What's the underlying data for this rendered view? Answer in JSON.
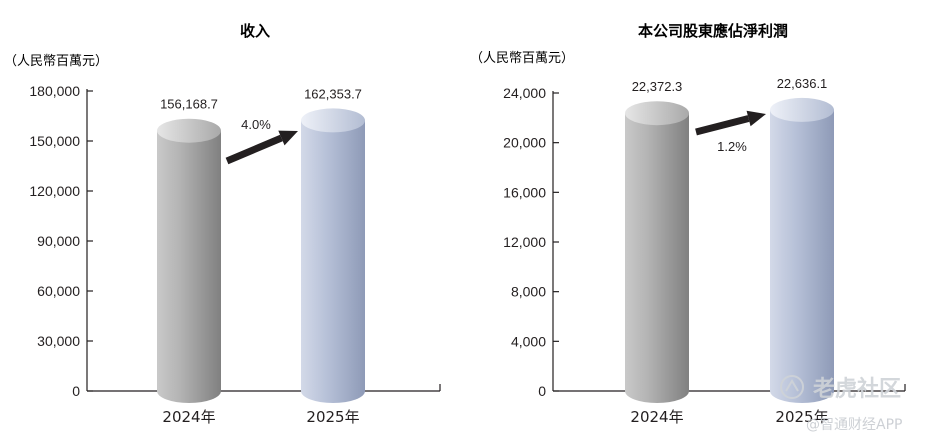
{
  "chart_data": [
    {
      "type": "bar",
      "title": "收入",
      "unit_label": "（人民幣百萬元）",
      "categories": [
        "2024年",
        "2025年"
      ],
      "values": [
        156168.7,
        162353.7
      ],
      "value_labels": [
        "156,168.7",
        "162,353.7"
      ],
      "growth_label": "4.0%",
      "ylim": [
        0,
        180000
      ],
      "yticks": [
        0,
        30000,
        60000,
        90000,
        120000,
        150000,
        180000
      ],
      "ytick_labels": [
        "0",
        "30,000",
        "60,000",
        "90,000",
        "120,000",
        "150,000",
        "180,000"
      ],
      "bar_colors": [
        "#8c8c8c",
        "#aab4ca"
      ]
    },
    {
      "type": "bar",
      "title": "本公司股東應佔淨利潤",
      "unit_label": "（人民幣百萬元）",
      "categories": [
        "2024年",
        "2025年"
      ],
      "values": [
        22372.3,
        22636.1
      ],
      "value_labels": [
        "22,372.3",
        "22,636.1"
      ],
      "growth_label": "1.2%",
      "ylim": [
        0,
        24000
      ],
      "yticks": [
        0,
        4000,
        8000,
        12000,
        16000,
        20000,
        24000
      ],
      "ytick_labels": [
        "0",
        "4,000",
        "8,000",
        "12,000",
        "16,000",
        "20,000",
        "24,000"
      ],
      "bar_colors": [
        "#8c8c8c",
        "#aab4ca"
      ]
    }
  ],
  "watermark": {
    "brand": "老虎社区",
    "source": "@智通财经APP"
  }
}
